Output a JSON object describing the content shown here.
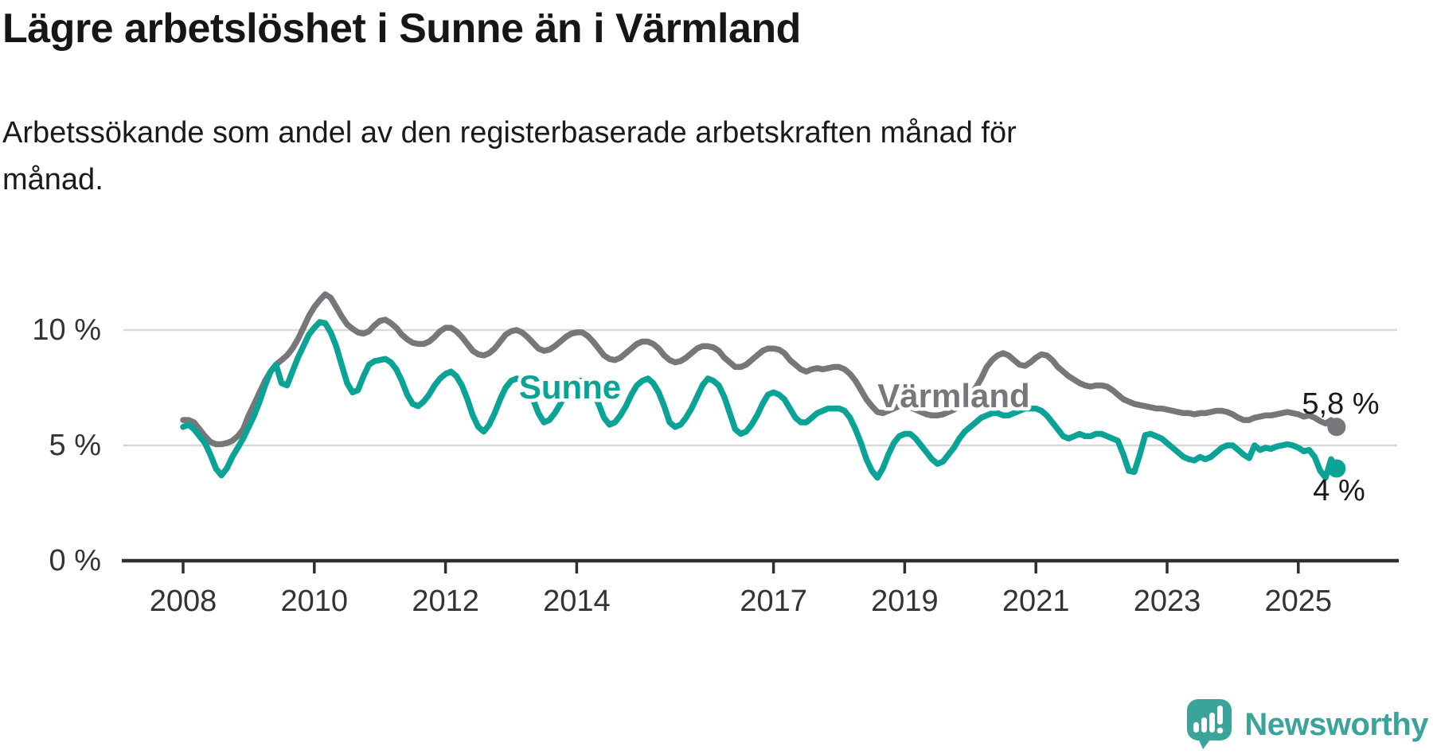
{
  "header": {
    "title": "Lägre arbetslöshet i Sunne än i Värmland",
    "subtitle": "Arbetssökande som andel av den registerbaserade arbetskraften månad för\nmånad."
  },
  "footer": {
    "brand": "Newsworthy"
  },
  "colors": {
    "sunne": "#0aa396",
    "varmland": "#77767b",
    "brand_teal": "#3aa49b",
    "gridline": "#d9d9d9",
    "axis": "#2f2f2f",
    "text_dark": "#1a1a1a",
    "tick_text": "#333333"
  },
  "chart_data": {
    "type": "line",
    "title": "Lägre arbetslöshet i Sunne än i Värmland",
    "subtitle": "Arbetssökande som andel av den registerbaserade arbetskraften månad för månad.",
    "unit": "%",
    "frequency": "monthly",
    "start_month": "2008-01",
    "end_month": "2025-08",
    "ylim": [
      0,
      12
    ],
    "grid": "horizontal",
    "x_axis": {
      "ticks": [
        {
          "label": "2008",
          "year": 2008
        },
        {
          "label": "2010",
          "year": 2010
        },
        {
          "label": "2012",
          "year": 2012
        },
        {
          "label": "2014",
          "year": 2014
        },
        {
          "label": "2017",
          "year": 2017
        },
        {
          "label": "2019",
          "year": 2019
        },
        {
          "label": "2021",
          "year": 2021
        },
        {
          "label": "2023",
          "year": 2023
        },
        {
          "label": "2025",
          "year": 2025
        }
      ]
    },
    "y_axis": {
      "ticks": [
        {
          "label": "10 %",
          "value": 10
        },
        {
          "label": "5 %",
          "value": 5
        },
        {
          "label": "0 %",
          "value": 0
        }
      ]
    },
    "series": [
      {
        "name": "Värmland",
        "inline_label": "Värmland",
        "color": "#77767b",
        "end_label": "5,8 %",
        "end_value": 5.8,
        "values": [
          6.1,
          6.1,
          6.0,
          5.7,
          5.4,
          5.15,
          5.05,
          5.05,
          5.1,
          5.2,
          5.4,
          5.7,
          6.3,
          6.8,
          7.3,
          7.8,
          8.2,
          8.5,
          8.7,
          8.9,
          9.2,
          9.6,
          10.1,
          10.6,
          11.0,
          11.3,
          11.55,
          11.4,
          11.0,
          10.6,
          10.25,
          10.05,
          9.9,
          9.85,
          9.95,
          10.2,
          10.4,
          10.45,
          10.3,
          10.1,
          9.8,
          9.6,
          9.45,
          9.4,
          9.4,
          9.5,
          9.7,
          9.95,
          10.1,
          10.1,
          9.95,
          9.7,
          9.4,
          9.1,
          8.95,
          8.9,
          9.0,
          9.2,
          9.5,
          9.8,
          9.95,
          10.0,
          9.9,
          9.7,
          9.45,
          9.2,
          9.1,
          9.15,
          9.3,
          9.5,
          9.7,
          9.85,
          9.9,
          9.9,
          9.75,
          9.5,
          9.2,
          8.9,
          8.75,
          8.7,
          8.8,
          9.0,
          9.2,
          9.4,
          9.5,
          9.5,
          9.4,
          9.2,
          8.9,
          8.7,
          8.6,
          8.65,
          8.8,
          9.0,
          9.2,
          9.3,
          9.3,
          9.25,
          9.1,
          8.8,
          8.6,
          8.4,
          8.4,
          8.5,
          8.7,
          8.9,
          9.1,
          9.2,
          9.2,
          9.15,
          9.0,
          8.7,
          8.5,
          8.3,
          8.2,
          8.3,
          8.35,
          8.3,
          8.35,
          8.4,
          8.4,
          8.3,
          8.1,
          7.8,
          7.4,
          7.0,
          6.7,
          6.45,
          6.4,
          6.5,
          6.6,
          6.7,
          6.7,
          6.65,
          6.55,
          6.45,
          6.35,
          6.3,
          6.3,
          6.35,
          6.45,
          6.55,
          6.7,
          6.9,
          7.2,
          7.5,
          7.9,
          8.4,
          8.7,
          8.9,
          9.0,
          8.9,
          8.7,
          8.5,
          8.45,
          8.6,
          8.8,
          8.95,
          8.9,
          8.7,
          8.4,
          8.2,
          8.0,
          7.85,
          7.7,
          7.6,
          7.55,
          7.6,
          7.6,
          7.55,
          7.4,
          7.2,
          7.0,
          6.9,
          6.8,
          6.75,
          6.7,
          6.65,
          6.6,
          6.6,
          6.55,
          6.5,
          6.45,
          6.4,
          6.4,
          6.35,
          6.4,
          6.4,
          6.45,
          6.5,
          6.5,
          6.45,
          6.35,
          6.2,
          6.1,
          6.1,
          6.2,
          6.25,
          6.3,
          6.3,
          6.35,
          6.4,
          6.45,
          6.4,
          6.35,
          6.25,
          6.3,
          6.2,
          6.05,
          5.95,
          6.1,
          5.8
        ]
      },
      {
        "name": "Sunne",
        "inline_label": "Sunne",
        "color": "#0aa396",
        "end_label": "4 %",
        "end_value": 4.0,
        "values": [
          5.8,
          5.9,
          5.7,
          5.4,
          5.1,
          4.6,
          4.0,
          3.7,
          4.0,
          4.5,
          4.9,
          5.3,
          5.8,
          6.3,
          6.9,
          7.6,
          8.2,
          8.5,
          7.7,
          7.6,
          8.2,
          8.8,
          9.3,
          9.8,
          10.1,
          10.35,
          10.3,
          9.9,
          9.3,
          8.5,
          7.7,
          7.3,
          7.4,
          8.0,
          8.5,
          8.65,
          8.7,
          8.75,
          8.6,
          8.3,
          7.8,
          7.2,
          6.8,
          6.7,
          6.9,
          7.2,
          7.6,
          7.9,
          8.1,
          8.2,
          8.0,
          7.6,
          7.0,
          6.3,
          5.8,
          5.6,
          5.9,
          6.4,
          7.0,
          7.5,
          7.8,
          7.9,
          7.8,
          7.5,
          7.0,
          6.4,
          6.0,
          6.1,
          6.4,
          6.8,
          7.2,
          7.6,
          7.8,
          7.8,
          7.6,
          7.3,
          6.8,
          6.2,
          5.9,
          6.0,
          6.3,
          6.7,
          7.2,
          7.6,
          7.8,
          7.9,
          7.7,
          7.3,
          6.7,
          6.0,
          5.8,
          5.9,
          6.2,
          6.6,
          7.1,
          7.6,
          7.9,
          7.8,
          7.6,
          7.1,
          6.4,
          5.7,
          5.5,
          5.6,
          5.9,
          6.3,
          6.8,
          7.2,
          7.3,
          7.2,
          7.0,
          6.6,
          6.2,
          6.0,
          6.0,
          6.2,
          6.4,
          6.5,
          6.6,
          6.6,
          6.6,
          6.5,
          6.2,
          5.7,
          5.1,
          4.4,
          3.9,
          3.6,
          4.0,
          4.6,
          5.1,
          5.4,
          5.5,
          5.5,
          5.3,
          5.0,
          4.7,
          4.4,
          4.2,
          4.3,
          4.6,
          4.9,
          5.3,
          5.6,
          5.8,
          6.0,
          6.2,
          6.3,
          6.4,
          6.4,
          6.3,
          6.3,
          6.4,
          6.5,
          6.6,
          6.6,
          6.6,
          6.5,
          6.3,
          6.0,
          5.7,
          5.4,
          5.3,
          5.4,
          5.5,
          5.4,
          5.4,
          5.5,
          5.5,
          5.4,
          5.3,
          5.2,
          4.6,
          3.9,
          3.85,
          4.6,
          5.45,
          5.5,
          5.4,
          5.3,
          5.1,
          4.9,
          4.7,
          4.5,
          4.4,
          4.35,
          4.5,
          4.4,
          4.5,
          4.7,
          4.9,
          5.0,
          5.0,
          4.8,
          4.6,
          4.45,
          5.0,
          4.8,
          4.9,
          4.85,
          4.95,
          5.0,
          5.05,
          5.0,
          4.9,
          4.75,
          4.8,
          4.5,
          3.9,
          3.6,
          4.4,
          4.0
        ]
      }
    ]
  }
}
